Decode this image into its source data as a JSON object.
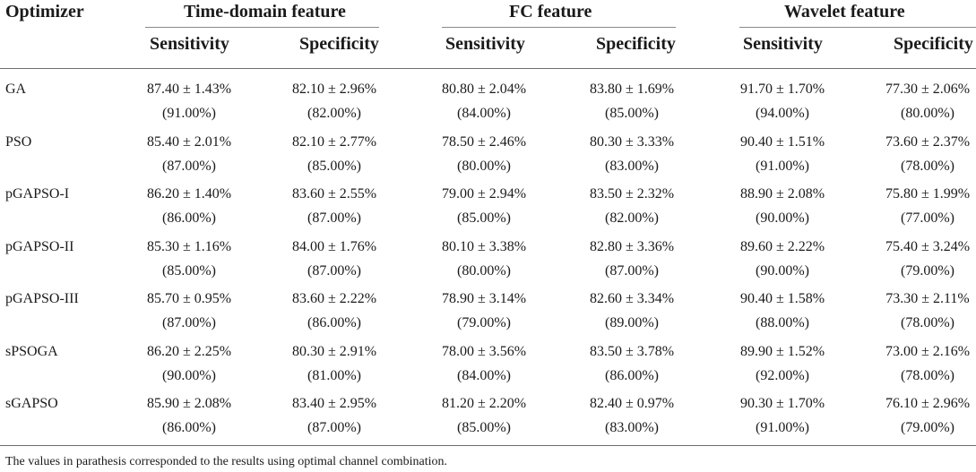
{
  "table": {
    "corner_header": "Optimizer",
    "groups": [
      {
        "name": "Time-domain feature"
      },
      {
        "name": "FC feature"
      },
      {
        "name": "Wavelet feature"
      }
    ],
    "subheaders": [
      "Sensitivity",
      "Specificity",
      "Sensitivity",
      "Specificity",
      "Sensitivity",
      "Specificity"
    ],
    "rows": [
      {
        "label": "GA",
        "means": [
          "87.40 ± 1.43%",
          "82.10 ± 2.96%",
          "80.80 ± 2.04%",
          "83.80 ± 1.69%",
          "91.70 ± 1.70%",
          "77.30 ± 2.06%"
        ],
        "optimal": [
          "(91.00%)",
          "(82.00%)",
          "(84.00%)",
          "(85.00%)",
          "(94.00%)",
          "(80.00%)"
        ]
      },
      {
        "label": "PSO",
        "means": [
          "85.40 ± 2.01%",
          "82.10 ± 2.77%",
          "78.50 ± 2.46%",
          "80.30 ± 3.33%",
          "90.40 ± 1.51%",
          "73.60 ± 2.37%"
        ],
        "optimal": [
          "(87.00%)",
          "(85.00%)",
          "(80.00%)",
          "(83.00%)",
          "(91.00%)",
          "(78.00%)"
        ]
      },
      {
        "label": "pGAPSO-I",
        "means": [
          "86.20 ± 1.40%",
          "83.60 ± 2.55%",
          "79.00 ± 2.94%",
          "83.50 ± 2.32%",
          "88.90 ± 2.08%",
          "75.80 ± 1.99%"
        ],
        "optimal": [
          "(86.00%)",
          "(87.00%)",
          "(85.00%)",
          "(82.00%)",
          "(90.00%)",
          "(77.00%)"
        ]
      },
      {
        "label": "pGAPSO-II",
        "means": [
          "85.30 ± 1.16%",
          "84.00 ± 1.76%",
          "80.10 ± 3.38%",
          "82.80 ± 3.36%",
          "89.60 ± 2.22%",
          "75.40 ± 3.24%"
        ],
        "optimal": [
          "(85.00%)",
          "(87.00%)",
          "(80.00%)",
          "(87.00%)",
          "(90.00%)",
          "(79.00%)"
        ]
      },
      {
        "label": "pGAPSO-III",
        "means": [
          "85.70 ± 0.95%",
          "83.60 ± 2.22%",
          "78.90 ± 3.14%",
          "82.60 ± 3.34%",
          "90.40 ± 1.58%",
          "73.30 ± 2.11%"
        ],
        "optimal": [
          "(87.00%)",
          "(86.00%)",
          "(79.00%)",
          "(89.00%)",
          "(88.00%)",
          "(78.00%)"
        ]
      },
      {
        "label": "sPSOGA",
        "means": [
          "86.20 ± 2.25%",
          "80.30 ± 2.91%",
          "78.00 ± 3.56%",
          "83.50 ± 3.78%",
          "89.90 ± 1.52%",
          "73.00 ± 2.16%"
        ],
        "optimal": [
          "(90.00%)",
          "(81.00%)",
          "(84.00%)",
          "(86.00%)",
          "(92.00%)",
          "(78.00%)"
        ]
      },
      {
        "label": "sGAPSO",
        "means": [
          "85.90 ± 2.08%",
          "83.40 ± 2.95%",
          "81.20 ± 2.20%",
          "82.40 ± 0.97%",
          "90.30 ± 1.70%",
          "76.10 ± 2.96%"
        ],
        "optimal": [
          "(86.00%)",
          "(87.00%)",
          "(85.00%)",
          "(83.00%)",
          "(91.00%)",
          "(79.00%)"
        ]
      }
    ],
    "footnote": "The values in parathesis corresponded to the results using optimal channel combination."
  }
}
